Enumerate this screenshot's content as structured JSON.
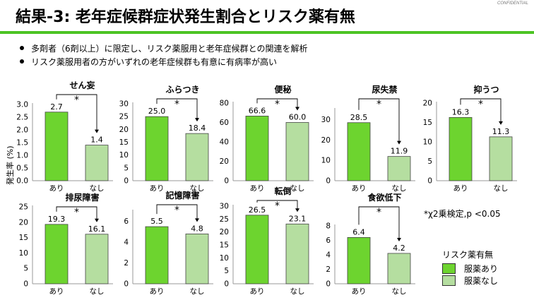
{
  "confidential": "CONFIDENTIAL",
  "title": "結果-3: 老年症候群症状発生割合とリスク薬有無",
  "bullets": [
    "多剤者（6剤以上）に限定し、リスク薬服用と老年症候群との関連を解析",
    "リスク薬服用者の方がいずれの老年症候群も有意に有病率が高い"
  ],
  "y_axis_label": "発生率 (%)",
  "note": "*χ2乗検定,p <0.05",
  "legend": {
    "title": "リスク薬有無",
    "items": [
      "服薬あり",
      "服薬なし"
    ]
  },
  "colors": {
    "with_drug": "#6dd42f",
    "without_drug": "#b5dea0",
    "title_rule": "#4cc424"
  },
  "chart_data": [
    {
      "type": "bar",
      "title": "せん妄",
      "categories": [
        "あり",
        "なし"
      ],
      "values": [
        2.7,
        1.4
      ],
      "labels": [
        "2.7",
        "1.4"
      ],
      "ylim": [
        0,
        3.0
      ],
      "ticks": [
        "0.0",
        "0.5",
        "1.0",
        "1.5",
        "2.0",
        "2.5",
        "3.0"
      ],
      "significance": "*"
    },
    {
      "type": "bar",
      "title": "ふらつき",
      "categories": [
        "あり",
        "なし"
      ],
      "values": [
        25.0,
        18.4
      ],
      "labels": [
        "25.0",
        "18.4"
      ],
      "ylim": [
        0,
        30
      ],
      "ticks": [
        "0",
        "5",
        "10",
        "15",
        "20",
        "25",
        "30"
      ],
      "significance": "*"
    },
    {
      "type": "bar",
      "title": "便秘",
      "categories": [
        "あり",
        "なし"
      ],
      "values": [
        66.6,
        60.0
      ],
      "labels": [
        "66.6",
        "60.0"
      ],
      "ylim": [
        0,
        80
      ],
      "ticks": [
        "0",
        "20",
        "40",
        "60",
        "80"
      ],
      "significance": "*"
    },
    {
      "type": "bar",
      "title": "尿失禁",
      "categories": [
        "あり",
        "なし"
      ],
      "values": [
        28.5,
        11.9
      ],
      "labels": [
        "28.5",
        "11.9"
      ],
      "ylim": [
        0,
        35
      ],
      "ticks": [
        "0",
        "10",
        "20",
        "30"
      ],
      "significance": "*"
    },
    {
      "type": "bar",
      "title": "抑うつ",
      "categories": [
        "あり",
        "なし"
      ],
      "values": [
        16.3,
        11.3
      ],
      "labels": [
        "16.3",
        "11.3"
      ],
      "ylim": [
        0,
        20
      ],
      "ticks": [
        "0",
        "5",
        "10",
        "15",
        "20"
      ],
      "significance": "*"
    },
    {
      "type": "bar",
      "title": "排尿障害",
      "categories": [
        "あり",
        "なし"
      ],
      "values": [
        19.3,
        16.1
      ],
      "labels": [
        "19.3",
        "16.1"
      ],
      "ylim": [
        0,
        25
      ],
      "ticks": [
        "0",
        "5",
        "10",
        "15",
        "20",
        "25"
      ],
      "significance": "*"
    },
    {
      "type": "bar",
      "title": "記憶障害",
      "categories": [
        "あり",
        "なし"
      ],
      "values": [
        5.5,
        4.8
      ],
      "labels": [
        "5.5",
        "4.8"
      ],
      "ylim": [
        0,
        7
      ],
      "ticks": [
        "0",
        "2",
        "4",
        "6"
      ],
      "significance": "*"
    },
    {
      "type": "bar",
      "title": "転倒",
      "categories": [
        "あり",
        "なし"
      ],
      "values": [
        26.5,
        23.1
      ],
      "labels": [
        "26.5",
        "23.1"
      ],
      "ylim": [
        0,
        30
      ],
      "ticks": [
        "0",
        "5",
        "10",
        "15",
        "20",
        "25",
        "30"
      ],
      "significance": "*"
    },
    {
      "type": "bar",
      "title": "食欲低下",
      "categories": [
        "あり",
        "なし"
      ],
      "values": [
        6.4,
        4.2
      ],
      "labels": [
        "6.4",
        "4.2"
      ],
      "ylim": [
        0,
        8
      ],
      "ticks": [
        "0",
        "2",
        "4",
        "6",
        "8"
      ],
      "significance": "*"
    }
  ]
}
